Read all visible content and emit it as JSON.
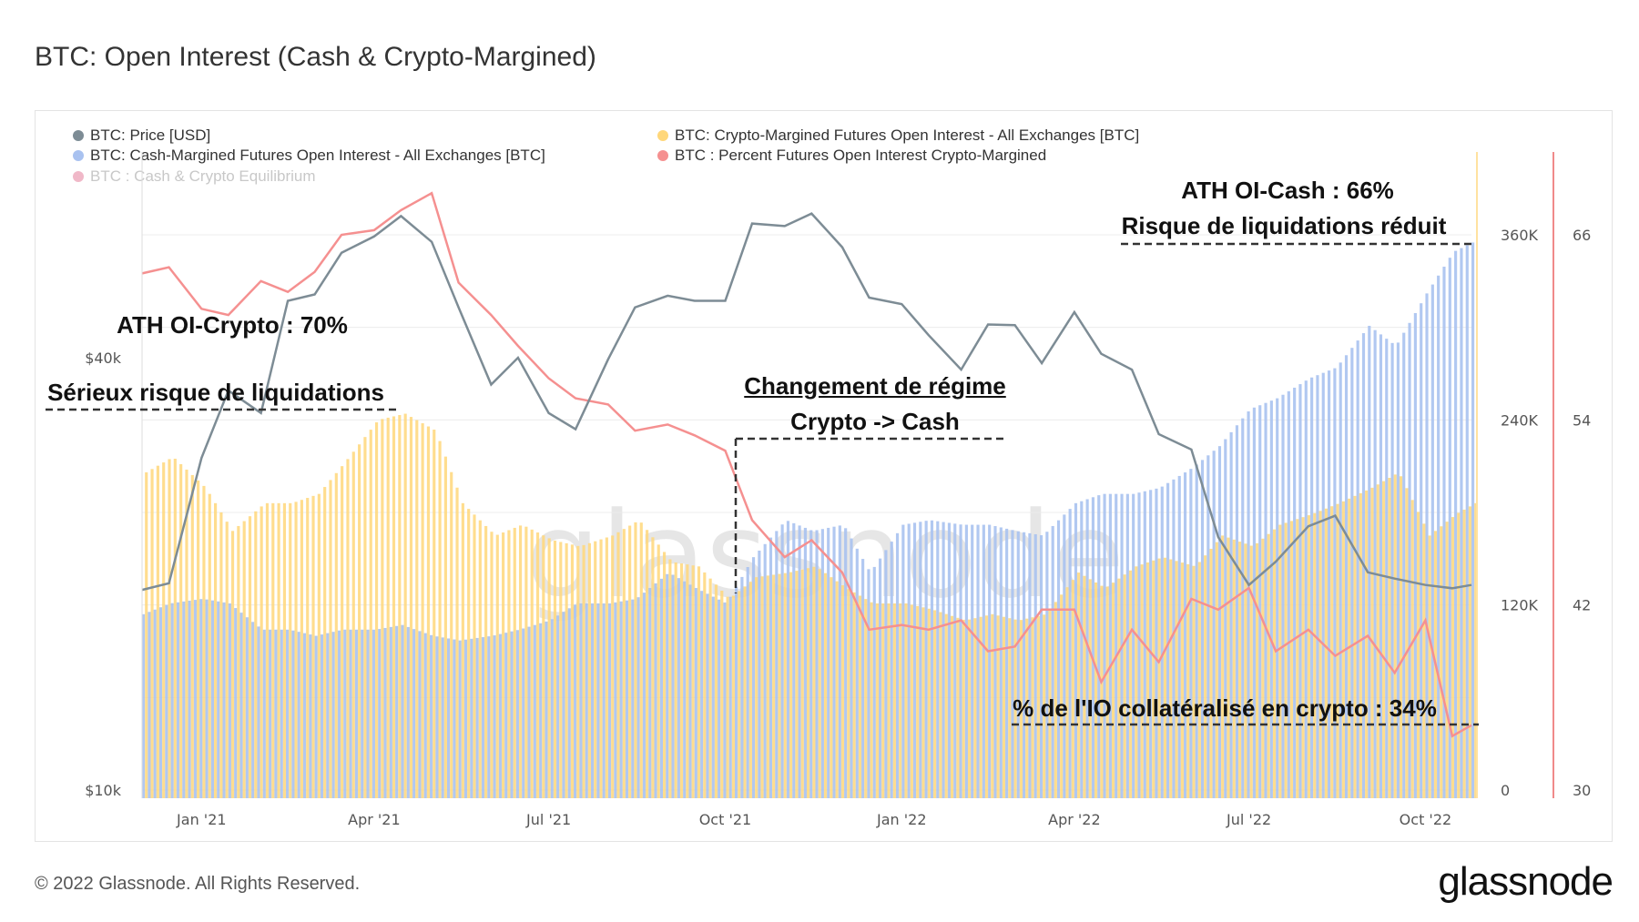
{
  "title": "BTC: Open Interest (Cash & Crypto-Margined)",
  "footer": "© 2022 Glassnode. All Rights Reserved.",
  "logo": "glassnode",
  "watermark": "glassnode",
  "colors": {
    "price": "#7d8c95",
    "crypto_oi": "#ffd77a",
    "cash_oi": "#a9c2f0",
    "percent": "#f59090",
    "equilibrium": "#f0b8c8"
  },
  "annotations": {
    "ath_cash_1": "ATH OI-Cash : 66%",
    "ath_cash_2": "Risque de liquidations réduit",
    "ath_crypto_1": "ATH OI-Crypto : 70%",
    "ath_crypto_2": "Sérieux risque de liquidations",
    "regime_1": "Changement de régime",
    "regime_2": "Crypto -> Cash",
    "pct_now": "% de l'IO collatéralisé en crypto : 34%"
  },
  "chart_data": {
    "type": "line+bar",
    "title": "BTC: Open Interest (Cash & Crypto-Margined)",
    "legend": [
      {
        "name": "BTC: Price [USD]",
        "color": "#7d8c95",
        "active": true
      },
      {
        "name": "BTC: Crypto-Margined Futures Open Interest - All Exchanges [BTC]",
        "color": "#ffd77a",
        "active": true
      },
      {
        "name": "BTC: Cash-Margined Futures Open Interest - All Exchanges [BTC]",
        "color": "#a9c2f0",
        "active": true
      },
      {
        "name": "BTC : Percent Futures Open Interest Crypto-Margined",
        "color": "#f59090",
        "active": true
      },
      {
        "name": "BTC : Cash & Crypto Equilibrium",
        "color": "#f0b8c8",
        "active": false
      }
    ],
    "x_ticks": [
      "Jan '21",
      "Apr '21",
      "Jul '21",
      "Oct '21",
      "Jan '22",
      "Apr '22",
      "Jul '22",
      "Oct '22"
    ],
    "x_tick_dates": [
      "2021-01-01",
      "2021-04-01",
      "2021-07-01",
      "2021-10-01",
      "2022-01-01",
      "2022-04-01",
      "2022-07-01",
      "2022-10-01"
    ],
    "xlim": [
      "2020-12-01",
      "2022-10-25"
    ],
    "price_axis": {
      "scale": "log",
      "ticks": [
        "$10k",
        "$40k"
      ],
      "tick_values": [
        10000,
        40000
      ],
      "ylim": [
        10000,
        77000
      ]
    },
    "oi_axis": {
      "ticks": [
        "0",
        "120K",
        "240K",
        "360K"
      ],
      "tick_values": [
        0,
        120000,
        240000,
        360000
      ],
      "ylim": [
        0,
        414000
      ]
    },
    "pct_axis": {
      "ticks": [
        "30",
        "42",
        "54",
        "66"
      ],
      "tick_values": [
        30,
        42,
        54,
        66
      ],
      "ylim": [
        30,
        71.4
      ]
    },
    "grid": true,
    "dates": [
      "2020-12-01",
      "2020-12-15",
      "2021-01-01",
      "2021-01-15",
      "2021-02-01",
      "2021-02-15",
      "2021-03-01",
      "2021-03-15",
      "2021-04-01",
      "2021-04-15",
      "2021-05-01",
      "2021-05-15",
      "2021-06-01",
      "2021-06-15",
      "2021-07-01",
      "2021-07-15",
      "2021-08-01",
      "2021-08-15",
      "2021-09-01",
      "2021-09-15",
      "2021-10-01",
      "2021-10-15",
      "2021-11-01",
      "2021-11-15",
      "2021-12-01",
      "2021-12-15",
      "2022-01-01",
      "2022-01-15",
      "2022-02-01",
      "2022-02-15",
      "2022-03-01",
      "2022-03-15",
      "2022-04-01",
      "2022-04-15",
      "2022-05-01",
      "2022-05-15",
      "2022-06-01",
      "2022-06-15",
      "2022-07-01",
      "2022-07-15",
      "2022-08-01",
      "2022-08-15",
      "2022-09-01",
      "2022-09-15",
      "2022-10-01",
      "2022-10-15",
      "2022-10-25"
    ],
    "series": [
      {
        "name": "BTC: Price [USD]",
        "axis": "price",
        "values": [
          19000,
          19400,
          29000,
          36000,
          33500,
          48000,
          49000,
          56000,
          59000,
          63000,
          58000,
          47000,
          36700,
          40000,
          33500,
          31800,
          39800,
          47000,
          48800,
          48000,
          48000,
          61500,
          61000,
          63500,
          57000,
          48500,
          47500,
          43000,
          38500,
          44500,
          44400,
          39300,
          46300,
          40500,
          38500,
          31300,
          29800,
          22500,
          19300,
          20800,
          23300,
          24100,
          20100,
          19700,
          19300,
          19100,
          19300
        ]
      },
      {
        "name": "BTC: Crypto-Margined Futures Open Interest - All Exchanges [BTC]",
        "axis": "oi",
        "values": [
          206000,
          216000,
          196000,
          168000,
          186000,
          186000,
          192000,
          213000,
          240000,
          244000,
          233000,
          186000,
          165000,
          172000,
          162000,
          158000,
          165000,
          175000,
          148000,
          145000,
          124000,
          138000,
          141000,
          145000,
          131000,
          121000,
          121000,
          117000,
          110000,
          114000,
          110000,
          114000,
          141000,
          131000,
          145000,
          151000,
          145000,
          165000,
          158000,
          172000,
          179000,
          186000,
          196000,
          206000,
          165000,
          179000,
          186000
        ]
      },
      {
        "name": "BTC: Cash-Margined Futures Open Interest - All Exchanges [BTC]",
        "axis": "oi",
        "values": [
          114000,
          121000,
          124000,
          121000,
          104000,
          104000,
          100000,
          104000,
          104000,
          107000,
          100000,
          97000,
          100000,
          104000,
          110000,
          121000,
          121000,
          124000,
          141000,
          131000,
          121000,
          151000,
          175000,
          168000,
          172000,
          141000,
          172000,
          175000,
          172000,
          172000,
          168000,
          165000,
          186000,
          192000,
          192000,
          196000,
          209000,
          223000,
          247000,
          254000,
          267000,
          274000,
          301000,
          288000,
          322000,
          349000,
          355000
        ]
      },
      {
        "name": "BTC : Percent Futures Open Interest Crypto-Margined",
        "axis": "pct",
        "values": [
          63.5,
          63.9,
          61.2,
          60.8,
          63.0,
          62.3,
          63.6,
          66.0,
          66.3,
          67.6,
          68.7,
          62.9,
          60.8,
          58.8,
          56.7,
          55.4,
          55.0,
          53.3,
          53.7,
          53.0,
          52.0,
          47.5,
          45.1,
          46.2,
          44.1,
          40.4,
          40.7,
          40.4,
          41.0,
          39.0,
          39.3,
          41.7,
          41.7,
          37.0,
          40.4,
          38.3,
          42.4,
          41.7,
          43.1,
          39.0,
          40.4,
          38.7,
          40.0,
          37.6,
          41.0,
          33.5,
          34.2
        ]
      }
    ]
  }
}
